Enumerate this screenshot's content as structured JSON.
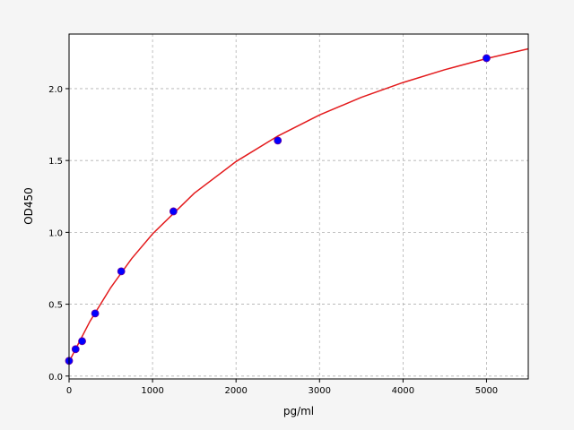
{
  "chart_data": {
    "type": "scatter",
    "title": "",
    "xlabel": "pg/ml",
    "ylabel": "OD450",
    "xlim": [
      0,
      5500
    ],
    "ylim": [
      -0.02,
      2.38
    ],
    "grid": true,
    "xticks": [
      0,
      1000,
      2000,
      3000,
      4000,
      5000
    ],
    "xtick_labels": [
      "0",
      "1000",
      "2000",
      "3000",
      "4000",
      "5000"
    ],
    "yticks": [
      0.0,
      0.5,
      1.0,
      1.5,
      2.0
    ],
    "ytick_labels": [
      "0.0",
      "0.5",
      "1.0",
      "1.5",
      "2.0"
    ],
    "points": {
      "x": [
        0,
        78.125,
        156.25,
        312.5,
        625,
        1250,
        2500,
        5000
      ],
      "y": [
        0.106,
        0.187,
        0.243,
        0.436,
        0.729,
        1.146,
        1.639,
        2.212
      ],
      "color": "#0000ff",
      "edge_color": "#6a00a0"
    },
    "fit_curve": {
      "color": "#e31a1c",
      "x": [
        0,
        250,
        500,
        750,
        1000,
        1500,
        2000,
        2500,
        3000,
        3500,
        4000,
        4500,
        5000,
        5500
      ],
      "y": [
        0.1,
        0.381,
        0.616,
        0.817,
        0.989,
        1.272,
        1.493,
        1.67,
        1.817,
        1.939,
        2.043,
        2.132,
        2.209,
        2.277
      ]
    }
  }
}
